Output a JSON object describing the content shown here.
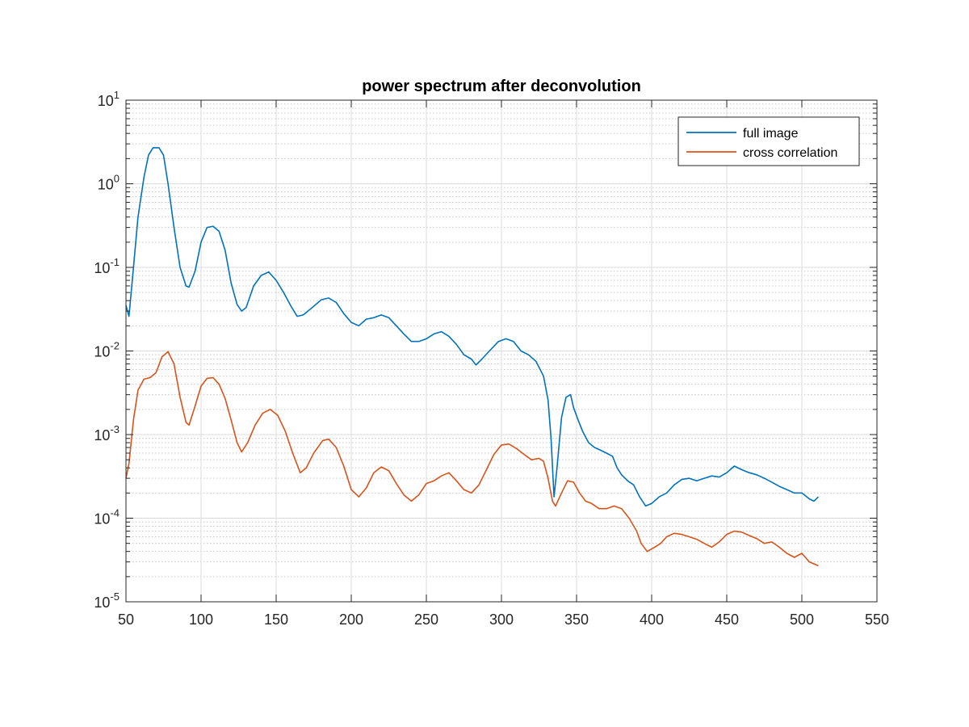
{
  "chart_data": {
    "type": "line",
    "title": "power spectrum after deconvolution",
    "xlabel": "",
    "ylabel": "",
    "xlim": [
      50,
      550
    ],
    "ylim": [
      1e-05,
      10
    ],
    "yscale": "log",
    "grid": true,
    "minor_grid": true,
    "legend_position": "top-right",
    "x_ticks": [
      50,
      100,
      150,
      200,
      250,
      300,
      350,
      400,
      450,
      500,
      550
    ],
    "x_tick_labels": [
      "50",
      "100",
      "150",
      "200",
      "250",
      "300",
      "350",
      "400",
      "450",
      "500",
      "550"
    ],
    "y_ticks": [
      {
        "value": 1e-05,
        "base": "10",
        "exp": "-5"
      },
      {
        "value": 0.0001,
        "base": "10",
        "exp": "-4"
      },
      {
        "value": 0.001,
        "base": "10",
        "exp": "-3"
      },
      {
        "value": 0.01,
        "base": "10",
        "exp": "-2"
      },
      {
        "value": 0.1,
        "base": "10",
        "exp": "-1"
      },
      {
        "value": 1,
        "base": "10",
        "exp": "0"
      },
      {
        "value": 10,
        "base": "10",
        "exp": "1"
      }
    ],
    "series": [
      {
        "name": "full image",
        "color": "#0072BD",
        "points": [
          [
            50,
            0.035
          ],
          [
            52,
            0.026
          ],
          [
            55,
            0.1
          ],
          [
            58,
            0.4
          ],
          [
            62,
            1.2
          ],
          [
            65,
            2.2
          ],
          [
            68,
            2.7
          ],
          [
            72,
            2.7
          ],
          [
            75,
            2.2
          ],
          [
            78,
            1.0
          ],
          [
            82,
            0.3
          ],
          [
            86,
            0.1
          ],
          [
            90,
            0.06
          ],
          [
            92,
            0.058
          ],
          [
            96,
            0.09
          ],
          [
            100,
            0.2
          ],
          [
            104,
            0.3
          ],
          [
            108,
            0.31
          ],
          [
            112,
            0.27
          ],
          [
            116,
            0.16
          ],
          [
            120,
            0.065
          ],
          [
            124,
            0.036
          ],
          [
            127,
            0.03
          ],
          [
            130,
            0.033
          ],
          [
            135,
            0.06
          ],
          [
            140,
            0.08
          ],
          [
            145,
            0.088
          ],
          [
            150,
            0.07
          ],
          [
            155,
            0.05
          ],
          [
            160,
            0.034
          ],
          [
            164,
            0.026
          ],
          [
            168,
            0.027
          ],
          [
            174,
            0.033
          ],
          [
            180,
            0.041
          ],
          [
            185,
            0.043
          ],
          [
            190,
            0.038
          ],
          [
            195,
            0.028
          ],
          [
            200,
            0.022
          ],
          [
            205,
            0.02
          ],
          [
            210,
            0.024
          ],
          [
            215,
            0.025
          ],
          [
            220,
            0.027
          ],
          [
            225,
            0.025
          ],
          [
            230,
            0.02
          ],
          [
            235,
            0.016
          ],
          [
            240,
            0.013
          ],
          [
            245,
            0.013
          ],
          [
            250,
            0.014
          ],
          [
            255,
            0.016
          ],
          [
            260,
            0.017
          ],
          [
            265,
            0.015
          ],
          [
            270,
            0.012
          ],
          [
            275,
            0.009
          ],
          [
            280,
            0.008
          ],
          [
            283,
            0.0068
          ],
          [
            287,
            0.008
          ],
          [
            292,
            0.01
          ],
          [
            298,
            0.013
          ],
          [
            303,
            0.014
          ],
          [
            308,
            0.013
          ],
          [
            313,
            0.01
          ],
          [
            318,
            0.009
          ],
          [
            323,
            0.0075
          ],
          [
            328,
            0.005
          ],
          [
            331,
            0.0026
          ],
          [
            333,
            0.0009
          ],
          [
            335,
            0.00018
          ],
          [
            337,
            0.0004
          ],
          [
            340,
            0.0016
          ],
          [
            343,
            0.0028
          ],
          [
            346,
            0.003
          ],
          [
            348,
            0.0021
          ],
          [
            351,
            0.0015
          ],
          [
            354,
            0.0011
          ],
          [
            358,
            0.0008
          ],
          [
            362,
            0.0007
          ],
          [
            366,
            0.00065
          ],
          [
            370,
            0.0006
          ],
          [
            374,
            0.00055
          ],
          [
            377,
            0.0004
          ],
          [
            380,
            0.00033
          ],
          [
            384,
            0.00028
          ],
          [
            388,
            0.00025
          ],
          [
            392,
            0.00018
          ],
          [
            396,
            0.00014
          ],
          [
            400,
            0.00015
          ],
          [
            405,
            0.00018
          ],
          [
            410,
            0.0002
          ],
          [
            415,
            0.00025
          ],
          [
            420,
            0.00029
          ],
          [
            425,
            0.0003
          ],
          [
            430,
            0.00028
          ],
          [
            435,
            0.0003
          ],
          [
            440,
            0.00032
          ],
          [
            445,
            0.00031
          ],
          [
            450,
            0.00035
          ],
          [
            455,
            0.00042
          ],
          [
            460,
            0.00038
          ],
          [
            465,
            0.00035
          ],
          [
            470,
            0.00033
          ],
          [
            475,
            0.0003
          ],
          [
            480,
            0.00027
          ],
          [
            485,
            0.00024
          ],
          [
            490,
            0.00022
          ],
          [
            495,
            0.0002
          ],
          [
            500,
            0.0002
          ],
          [
            505,
            0.00017
          ],
          [
            508,
            0.00016
          ],
          [
            511,
            0.00018
          ]
        ]
      },
      {
        "name": "cross correlation",
        "color": "#D95319",
        "points": [
          [
            50,
            0.0003
          ],
          [
            52,
            0.00045
          ],
          [
            55,
            0.0015
          ],
          [
            58,
            0.0034
          ],
          [
            62,
            0.0046
          ],
          [
            66,
            0.0048
          ],
          [
            70,
            0.0055
          ],
          [
            74,
            0.0085
          ],
          [
            78,
            0.0098
          ],
          [
            82,
            0.007
          ],
          [
            86,
            0.0028
          ],
          [
            90,
            0.0014
          ],
          [
            92,
            0.0013
          ],
          [
            96,
            0.0022
          ],
          [
            100,
            0.0038
          ],
          [
            104,
            0.0047
          ],
          [
            108,
            0.0048
          ],
          [
            112,
            0.004
          ],
          [
            116,
            0.0027
          ],
          [
            120,
            0.0015
          ],
          [
            124,
            0.0008
          ],
          [
            127,
            0.00062
          ],
          [
            131,
            0.0008
          ],
          [
            136,
            0.0013
          ],
          [
            141,
            0.0018
          ],
          [
            146,
            0.002
          ],
          [
            151,
            0.0017
          ],
          [
            156,
            0.0011
          ],
          [
            161,
            0.0006
          ],
          [
            166,
            0.00035
          ],
          [
            170,
            0.0004
          ],
          [
            175,
            0.0006
          ],
          [
            181,
            0.00085
          ],
          [
            185,
            0.00088
          ],
          [
            190,
            0.0007
          ],
          [
            195,
            0.00042
          ],
          [
            200,
            0.00022
          ],
          [
            205,
            0.00018
          ],
          [
            210,
            0.00023
          ],
          [
            215,
            0.00035
          ],
          [
            220,
            0.00041
          ],
          [
            225,
            0.00037
          ],
          [
            230,
            0.00026
          ],
          [
            235,
            0.00019
          ],
          [
            240,
            0.00016
          ],
          [
            245,
            0.00019
          ],
          [
            250,
            0.00026
          ],
          [
            255,
            0.00028
          ],
          [
            260,
            0.00032
          ],
          [
            265,
            0.00035
          ],
          [
            270,
            0.00028
          ],
          [
            275,
            0.00022
          ],
          [
            280,
            0.0002
          ],
          [
            285,
            0.00025
          ],
          [
            290,
            0.00038
          ],
          [
            295,
            0.00058
          ],
          [
            300,
            0.00075
          ],
          [
            305,
            0.00077
          ],
          [
            310,
            0.00068
          ],
          [
            315,
            0.00058
          ],
          [
            320,
            0.0005
          ],
          [
            325,
            0.00052
          ],
          [
            328,
            0.00048
          ],
          [
            331,
            0.0003
          ],
          [
            334,
            0.00016
          ],
          [
            336,
            0.00014
          ],
          [
            340,
            0.0002
          ],
          [
            344,
            0.00028
          ],
          [
            348,
            0.00027
          ],
          [
            352,
            0.0002
          ],
          [
            356,
            0.00016
          ],
          [
            360,
            0.00015
          ],
          [
            365,
            0.00013
          ],
          [
            370,
            0.00013
          ],
          [
            375,
            0.00014
          ],
          [
            380,
            0.00013
          ],
          [
            385,
            0.0001
          ],
          [
            390,
            7e-05
          ],
          [
            393,
            5e-05
          ],
          [
            397,
            4e-05
          ],
          [
            402,
            4.5e-05
          ],
          [
            406,
            5e-05
          ],
          [
            410,
            6e-05
          ],
          [
            415,
            6.6e-05
          ],
          [
            420,
            6.4e-05
          ],
          [
            425,
            6e-05
          ],
          [
            430,
            5.6e-05
          ],
          [
            435,
            5e-05
          ],
          [
            440,
            4.5e-05
          ],
          [
            445,
            5.2e-05
          ],
          [
            450,
            6.4e-05
          ],
          [
            455,
            7e-05
          ],
          [
            460,
            6.8e-05
          ],
          [
            465,
            6.2e-05
          ],
          [
            470,
            5.7e-05
          ],
          [
            475,
            5e-05
          ],
          [
            480,
            5.2e-05
          ],
          [
            485,
            4.5e-05
          ],
          [
            490,
            3.8e-05
          ],
          [
            495,
            3.4e-05
          ],
          [
            500,
            3.8e-05
          ],
          [
            505,
            3e-05
          ],
          [
            511,
            2.7e-05
          ]
        ]
      }
    ]
  }
}
